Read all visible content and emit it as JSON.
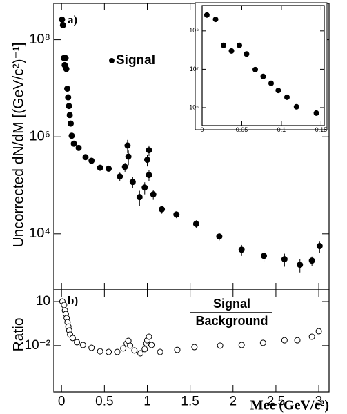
{
  "chart_data": [
    {
      "type": "scatter",
      "ylabel": "Uncorrected dN/dM [(GeV/c²)⁻¹]",
      "panel_label": "a)",
      "annotation": "Signal",
      "xlim": [
        -0.09,
        3.12
      ],
      "xticks": [
        0,
        0.5,
        1,
        1.5,
        2,
        2.5,
        3
      ],
      "ylim": [
        700,
        560000000
      ],
      "ylog": true,
      "yticks": [
        {
          "value": 10000,
          "label": "10⁴"
        },
        {
          "value": 1000000,
          "label": "10⁶"
        },
        {
          "value": 100000000,
          "label": "10⁸"
        }
      ],
      "color": "#000000",
      "marker": "filled",
      "x": [
        0.006,
        0.017,
        0.027,
        0.037,
        0.047,
        0.056,
        0.067,
        0.077,
        0.087,
        0.096,
        0.107,
        0.119,
        0.144,
        0.2,
        0.28,
        0.35,
        0.45,
        0.55,
        0.68,
        0.74,
        0.77,
        0.78,
        0.83,
        0.91,
        0.97,
        1.0,
        1.02,
        1.02,
        1.07,
        1.17,
        1.34,
        1.57,
        1.84,
        2.1,
        2.36,
        2.6,
        2.78,
        2.92,
        3.01
      ],
      "values": [
        260000000,
        200000000,
        42000000,
        30000000,
        42000000,
        25000000,
        9800000,
        6500000,
        4300000,
        2800000,
        1870000,
        1050000,
        720000,
        590000,
        380000,
        320000,
        230000,
        220000,
        152000,
        240000,
        660000,
        390000,
        117000,
        57000,
        90000,
        335000,
        530000,
        163000,
        65000,
        32000,
        25000,
        16000,
        8800,
        4700,
        3500,
        3000,
        2300,
        2800,
        5600
      ],
      "errors": [
        0,
        0,
        0,
        0,
        0,
        0,
        0,
        0,
        0,
        0,
        0,
        0,
        0,
        0,
        0,
        0,
        0,
        15000,
        30000,
        50000,
        200000,
        130000,
        30000,
        20000,
        25000,
        90000,
        130000,
        40000,
        15000,
        6000,
        4000,
        3000,
        1500,
        1200,
        900,
        900,
        700,
        600,
        1500
      ]
    },
    {
      "type": "scatter",
      "inset": true,
      "xlim": [
        0,
        0.154
      ],
      "xticks": [
        0,
        0.05,
        0.1,
        0.15
      ],
      "ylim": [
        340000,
        460000000
      ],
      "ylog": true,
      "yticks": [
        {
          "value": 1000000,
          "label": "10⁶"
        },
        {
          "value": 10000000,
          "label": "10⁷"
        },
        {
          "value": 100000000,
          "label": "10⁸"
        }
      ],
      "color": "#000000",
      "marker": "filled",
      "x": [
        0.006,
        0.017,
        0.027,
        0.037,
        0.047,
        0.056,
        0.067,
        0.077,
        0.087,
        0.096,
        0.107,
        0.119,
        0.144
      ],
      "values": [
        260000000,
        200000000,
        42000000,
        30000000,
        42000000,
        25000000,
        9800000,
        6500000,
        4300000,
        2800000,
        1870000,
        1050000,
        720000
      ]
    },
    {
      "type": "scatter",
      "ylabel": "Ratio",
      "panel_label": "b)",
      "xlabel": "Mee (GeV/c²)",
      "annotation_numerator": "Signal",
      "annotation_denominator": "Background",
      "xlim": [
        -0.09,
        3.12
      ],
      "xticks": [
        0,
        0.5,
        1,
        1.5,
        2,
        2.5,
        3
      ],
      "ylim": [
        7e-06,
        63
      ],
      "ylog": true,
      "yticks": [
        10,
        {
          "value": 0.01,
          "label": "10⁻²"
        }
      ],
      "color": "#000000",
      "marker": "open",
      "x": [
        0.01,
        0.03,
        0.04,
        0.05,
        0.06,
        0.07,
        0.08,
        0.09,
        0.1,
        0.13,
        0.18,
        0.25,
        0.35,
        0.45,
        0.55,
        0.65,
        0.72,
        0.76,
        0.78,
        0.8,
        0.85,
        0.92,
        0.97,
        0.99,
        1.0,
        1.02,
        1.05,
        1.15,
        1.35,
        1.55,
        1.85,
        2.1,
        2.35,
        2.6,
        2.75,
        2.92,
        3.0
      ],
      "values": [
        10,
        5.8,
        2.45,
        1.43,
        0.75,
        0.39,
        0.2,
        0.107,
        0.056,
        0.033,
        0.017,
        0.011,
        0.0071,
        0.0041,
        0.0037,
        0.0037,
        0.0065,
        0.014,
        0.021,
        0.01,
        0.0047,
        0.003,
        0.0058,
        0.014,
        0.023,
        0.04,
        0.011,
        0.0037,
        0.0051,
        0.0079,
        0.01,
        0.011,
        0.0154,
        0.023,
        0.023,
        0.04,
        0.095
      ]
    }
  ]
}
